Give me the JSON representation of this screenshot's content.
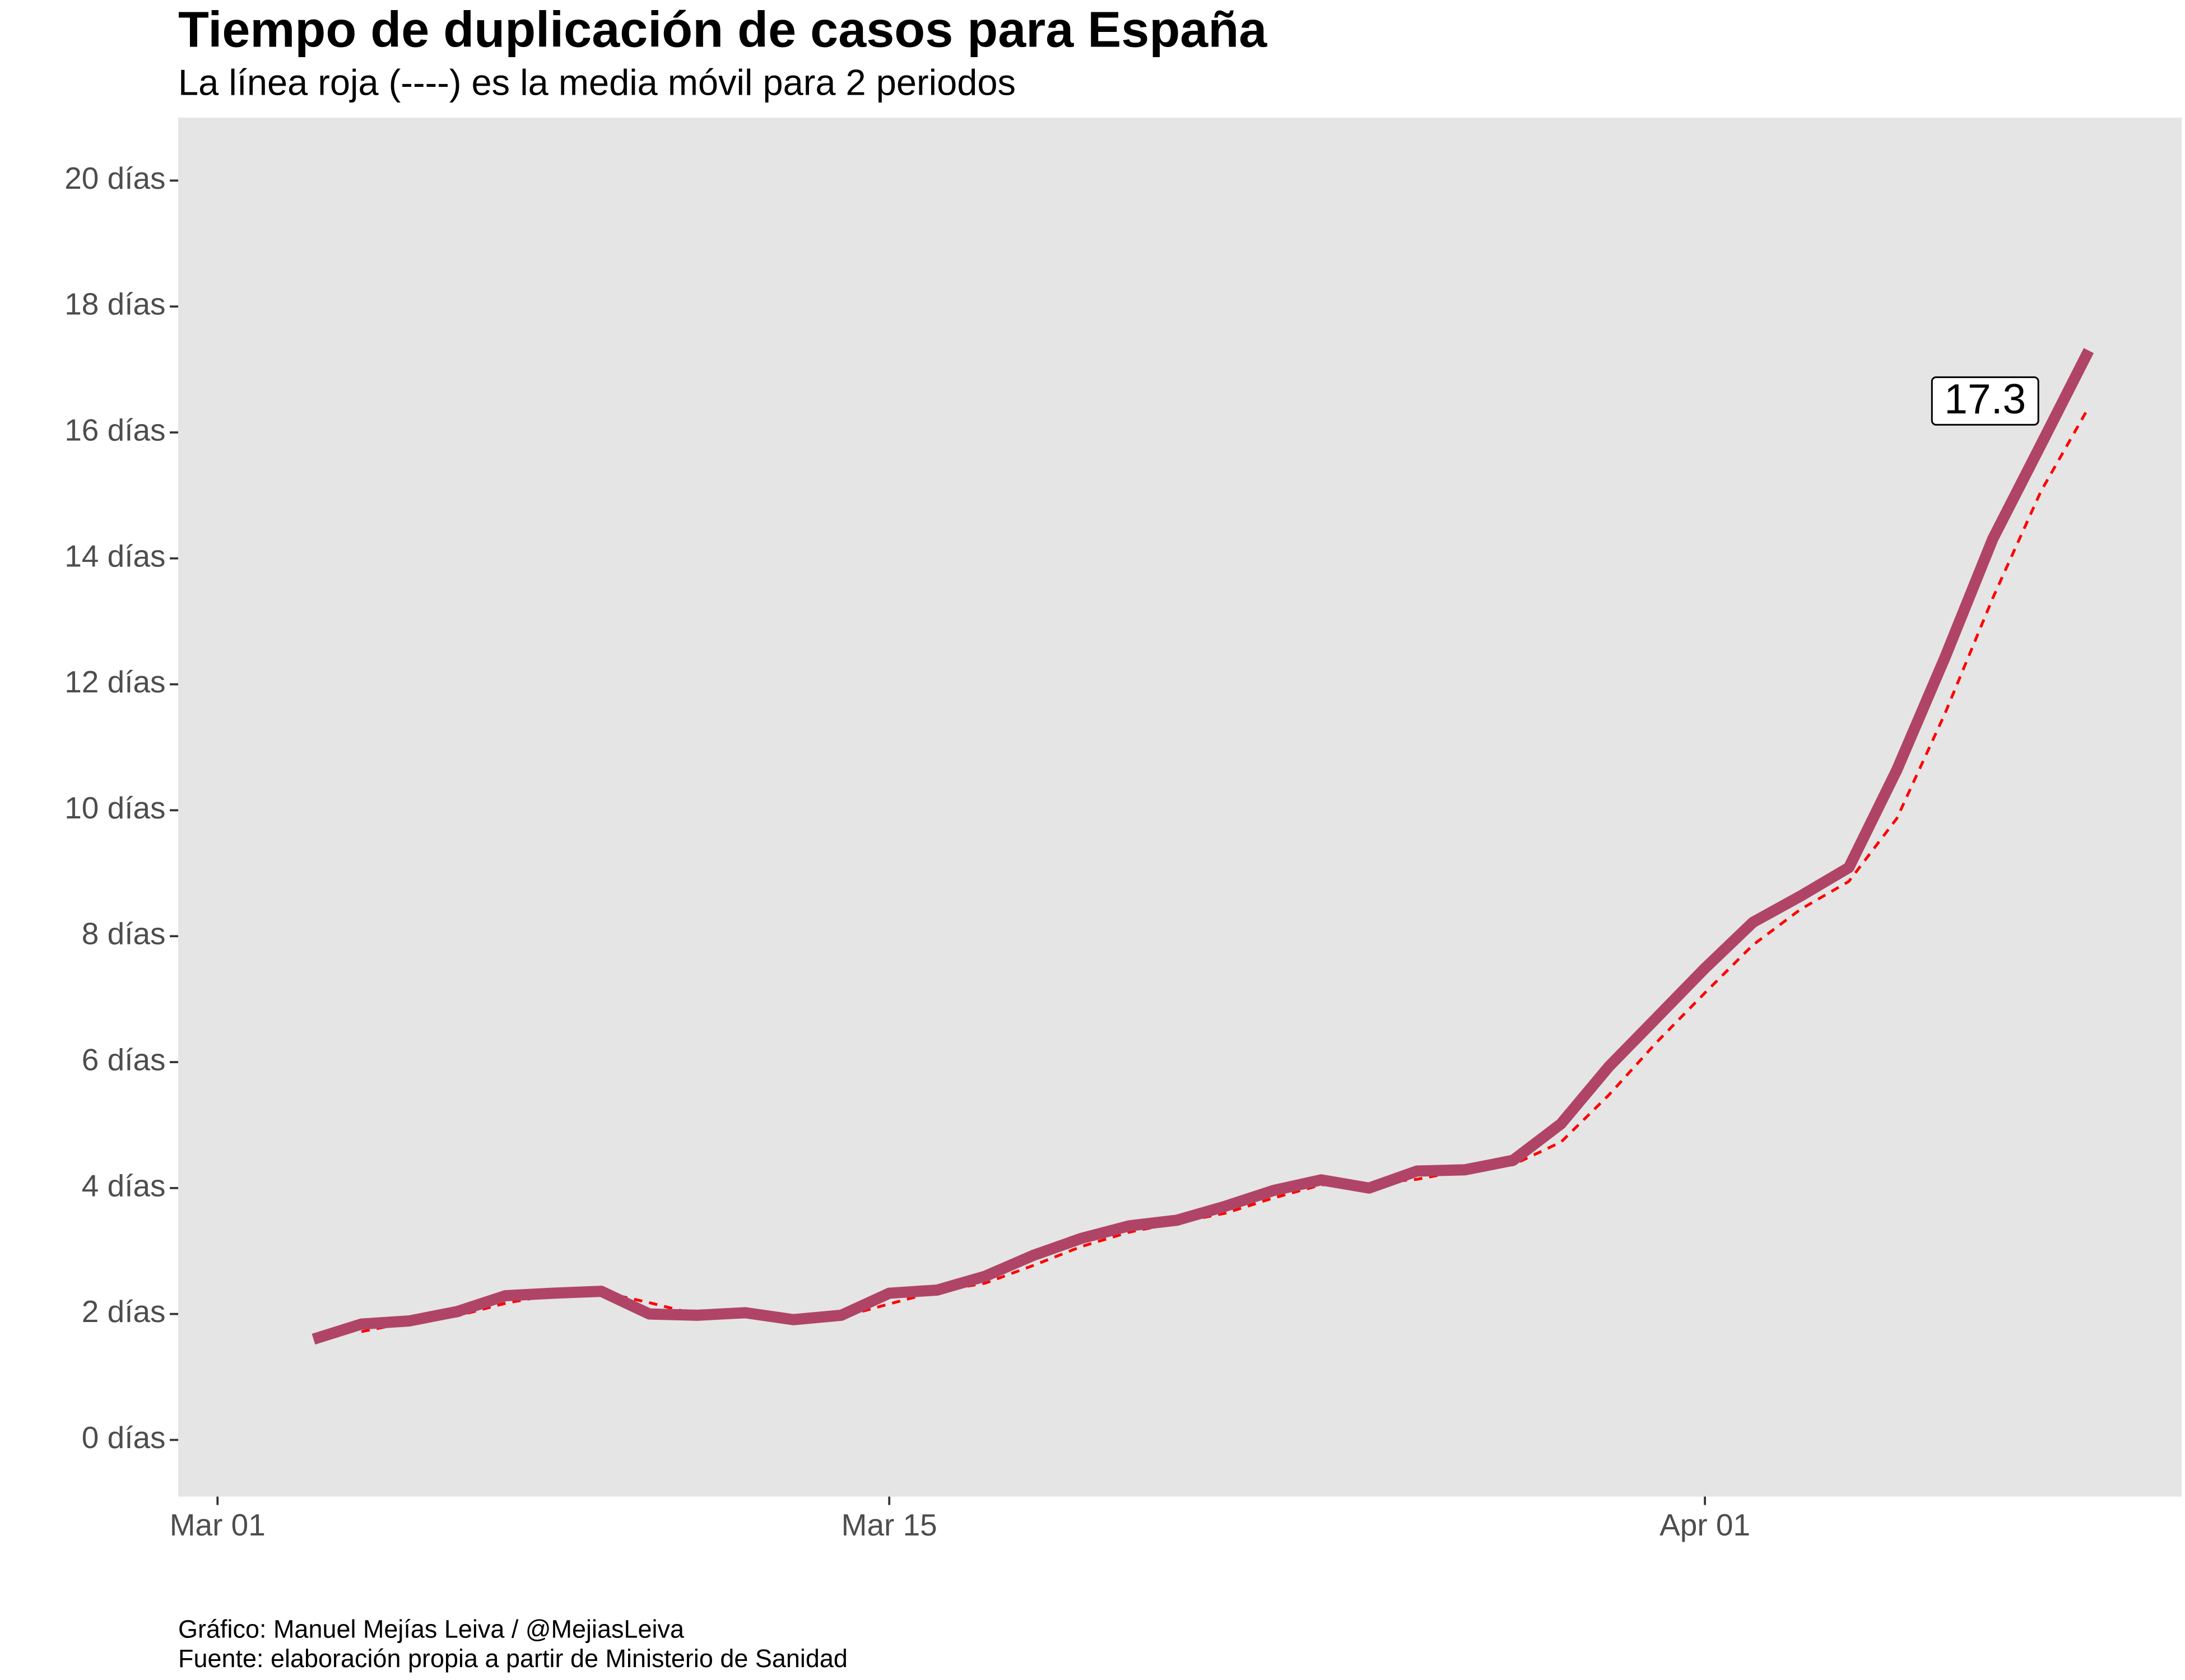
{
  "chart_data": {
    "type": "line",
    "title": "Tiempo de duplicación de casos para España",
    "subtitle": "La línea roja (----) es la media móvil para 2 periodos",
    "caption": [
      "Gráfico: Manuel Mejías Leiva / @MejiasLeiva",
      "Fuente: elaboración propia a partir de Ministerio de Sanidad"
    ],
    "x": [
      3,
      4,
      5,
      6,
      7,
      8,
      9,
      10,
      11,
      12,
      13,
      14,
      15,
      16,
      17,
      18,
      19,
      20,
      21,
      22,
      23,
      24,
      25,
      26,
      27,
      28,
      29,
      30,
      31,
      32,
      33,
      34,
      35,
      36,
      37,
      38,
      39,
      40
    ],
    "series": [
      {
        "color": "#b04467",
        "values": [
          1.6,
          1.84,
          1.89,
          2.04,
          2.29,
          2.33,
          2.36,
          2.0,
          1.98,
          2.02,
          1.91,
          1.98,
          2.33,
          2.38,
          2.6,
          2.93,
          3.2,
          3.4,
          3.49,
          3.71,
          3.96,
          4.13,
          4.0,
          4.27,
          4.29,
          4.44,
          5.02,
          5.93,
          6.71,
          7.49,
          8.22,
          8.64,
          9.09,
          10.64,
          12.42,
          14.31,
          15.8,
          17.3
        ]
      },
      {
        "color": "#ff0000",
        "dashed": true,
        "values": [
          null,
          1.72,
          1.87,
          1.97,
          2.17,
          2.31,
          2.35,
          2.18,
          1.99,
          2.0,
          1.97,
          1.95,
          2.16,
          2.36,
          2.49,
          2.77,
          3.07,
          3.3,
          3.45,
          3.6,
          3.84,
          4.05,
          4.07,
          4.14,
          4.28,
          4.37,
          4.73,
          5.48,
          6.32,
          7.1,
          7.86,
          8.43,
          8.87,
          9.87,
          11.53,
          13.37,
          15.06,
          16.4
        ]
      }
    ],
    "xlim": [
      0.18,
      41.94
    ],
    "xticks": [
      {
        "value": 1,
        "label": "Mar 01"
      },
      {
        "value": 15,
        "label": "Mar 15"
      },
      {
        "value": 32,
        "label": "Apr 01"
      }
    ],
    "ylim": [
      -0.9,
      21
    ],
    "yticks": [
      {
        "value": 0,
        "label": "0 días"
      },
      {
        "value": 2,
        "label": "2 días"
      },
      {
        "value": 4,
        "label": "4 días"
      },
      {
        "value": 6,
        "label": "6 días"
      },
      {
        "value": 8,
        "label": "8 días"
      },
      {
        "value": 10,
        "label": "10 días"
      },
      {
        "value": 12,
        "label": "12 días"
      },
      {
        "value": 14,
        "label": "14 días"
      },
      {
        "value": 16,
        "label": "16 días"
      },
      {
        "value": 18,
        "label": "18 días"
      },
      {
        "value": 20,
        "label": "20 días"
      }
    ],
    "grid": false
  }
}
